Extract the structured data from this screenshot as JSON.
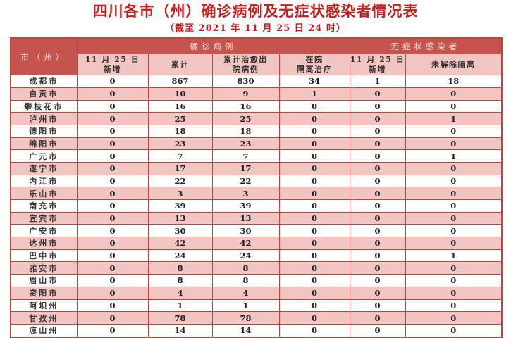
{
  "title": "四川各市（州）确诊病例及无症状感染者情况表",
  "subtitle": "（截至 2021 年 11 月 25 日 24 时）",
  "colors": {
    "title_red": "#c32120",
    "band_red": "#c5544f",
    "pink": "#f1c6c2",
    "border_red": "#b9473f"
  },
  "table": {
    "corner_header": "市（州）",
    "group_headers": [
      {
        "label": "确诊病例",
        "colspan": 4
      },
      {
        "label": "无症状感染者",
        "colspan": 2
      }
    ],
    "sub_headers": [
      "11 月 25 日\n新增",
      "累计",
      "累计治愈出\n院病例",
      "在院\n隔离治疗",
      "11 月 25 日\n新增",
      "未解除隔离"
    ],
    "rows": [
      {
        "city": "成都市",
        "values": [
          "0",
          "867",
          "830",
          "34",
          "1",
          "18"
        ]
      },
      {
        "city": "自贡市",
        "values": [
          "0",
          "10",
          "9",
          "1",
          "0",
          "0"
        ]
      },
      {
        "city": "攀枝花市",
        "values": [
          "0",
          "16",
          "16",
          "0",
          "0",
          "0"
        ]
      },
      {
        "city": "泸州市",
        "values": [
          "0",
          "25",
          "25",
          "0",
          "0",
          "1"
        ]
      },
      {
        "city": "德阳市",
        "values": [
          "0",
          "18",
          "18",
          "0",
          "0",
          "0"
        ]
      },
      {
        "city": "绵阳市",
        "values": [
          "0",
          "23",
          "23",
          "0",
          "0",
          "0"
        ]
      },
      {
        "city": "广元市",
        "values": [
          "0",
          "7",
          "7",
          "0",
          "0",
          "1"
        ]
      },
      {
        "city": "遂宁市",
        "values": [
          "0",
          "17",
          "17",
          "0",
          "0",
          "0"
        ]
      },
      {
        "city": "内江市",
        "values": [
          "0",
          "22",
          "22",
          "0",
          "0",
          "0"
        ]
      },
      {
        "city": "乐山市",
        "values": [
          "0",
          "3",
          "3",
          "0",
          "0",
          "0"
        ]
      },
      {
        "city": "南充市",
        "values": [
          "0",
          "39",
          "39",
          "0",
          "0",
          "0"
        ]
      },
      {
        "city": "宜宾市",
        "values": [
          "0",
          "13",
          "13",
          "0",
          "0",
          "0"
        ]
      },
      {
        "city": "广安市",
        "values": [
          "0",
          "30",
          "30",
          "0",
          "0",
          "0"
        ]
      },
      {
        "city": "达州市",
        "values": [
          "0",
          "42",
          "42",
          "0",
          "0",
          "0"
        ]
      },
      {
        "city": "巴中市",
        "values": [
          "0",
          "24",
          "24",
          "0",
          "0",
          "1"
        ]
      },
      {
        "city": "雅安市",
        "values": [
          "0",
          "8",
          "8",
          "0",
          "0",
          "0"
        ]
      },
      {
        "city": "眉山市",
        "values": [
          "0",
          "8",
          "8",
          "0",
          "0",
          "0"
        ]
      },
      {
        "city": "资阳市",
        "values": [
          "0",
          "4",
          "4",
          "0",
          "0",
          "0"
        ]
      },
      {
        "city": "阿坝州",
        "values": [
          "0",
          "1",
          "1",
          "0",
          "0",
          "0"
        ]
      },
      {
        "city": "甘孜州",
        "values": [
          "0",
          "78",
          "78",
          "0",
          "0",
          "0"
        ]
      },
      {
        "city": "凉山州",
        "values": [
          "0",
          "14",
          "14",
          "0",
          "0",
          "0"
        ]
      }
    ]
  }
}
